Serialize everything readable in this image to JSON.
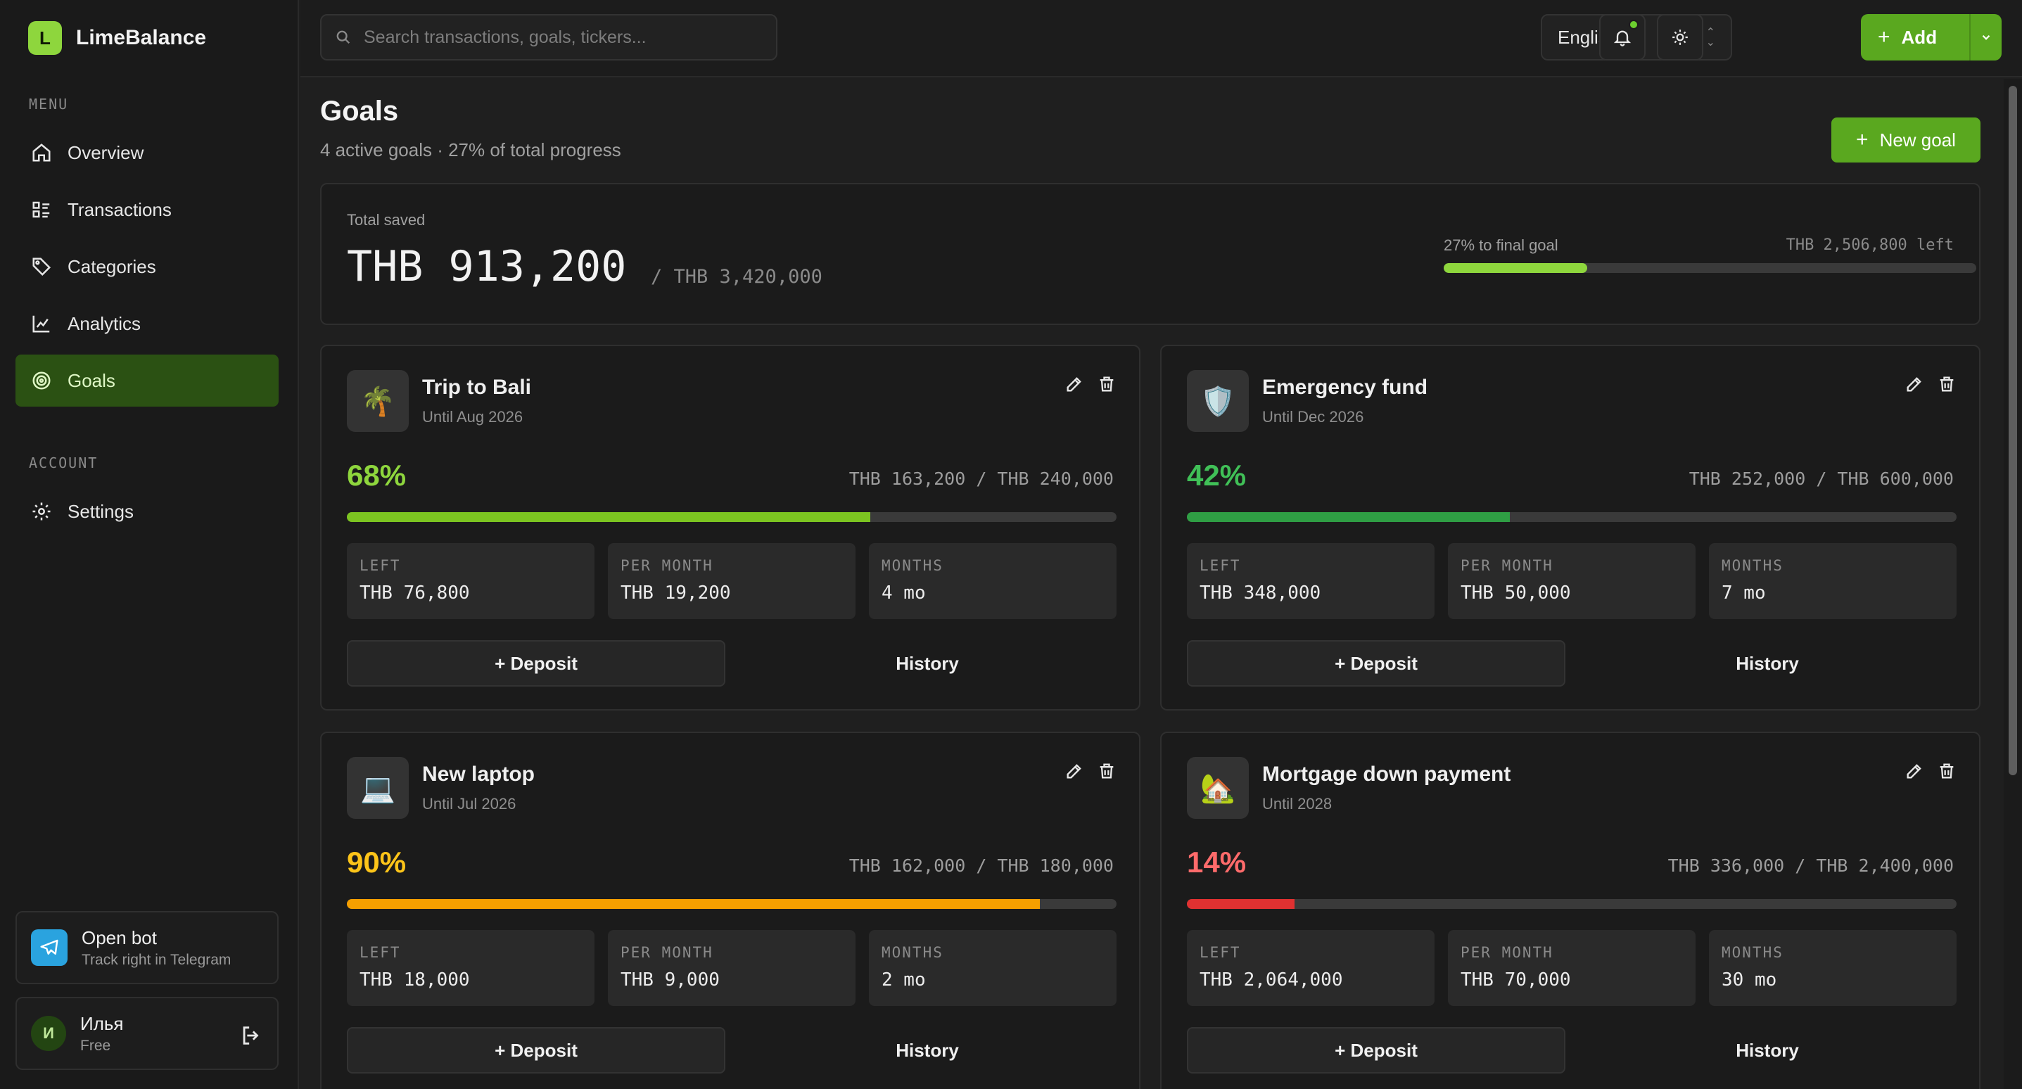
{
  "app": {
    "name": "LimeBalance",
    "logo_letter": "L"
  },
  "sidebar": {
    "menu_label": "MENU",
    "items": [
      {
        "label": "Overview",
        "icon": "home-icon"
      },
      {
        "label": "Transactions",
        "icon": "list-icon"
      },
      {
        "label": "Categories",
        "icon": "tag-icon"
      },
      {
        "label": "Analytics",
        "icon": "chart-icon"
      },
      {
        "label": "Goals",
        "icon": "target-icon",
        "active": true
      }
    ],
    "account_label": "ACCOUNT",
    "account_items": [
      {
        "label": "Settings",
        "icon": "gear-icon"
      }
    ],
    "bot": {
      "title": "Open bot",
      "subtitle": "Track right in Telegram"
    },
    "user": {
      "initial": "И",
      "name": "Илья",
      "plan": "Free"
    }
  },
  "topbar": {
    "search_placeholder": "Search transactions, goals, tickers...",
    "language": "English",
    "add_label": "Add"
  },
  "page": {
    "title": "Goals",
    "subtitle": "4 active goals · 27% of total progress",
    "new_goal_label": "New goal"
  },
  "summary": {
    "label": "Total saved",
    "amount": "THB 913,200",
    "of": "/ THB 3,420,000",
    "progress_text": "27% to final goal",
    "left_text": "THB 2,506,800 left",
    "progress_fraction": 0.27,
    "accent": "#8ed63d"
  },
  "goals": [
    {
      "name": "Trip to Bali",
      "until": "Until Aug 2026",
      "emoji": "🌴",
      "pct": "68%",
      "fraction": 0.68,
      "color": "#7cc421",
      "pct_color": "#8ed63d",
      "amounts": "THB 163,200 / THB 240,000",
      "left": "THB 76,800",
      "per_month": "THB 19,200",
      "months": "4 mo"
    },
    {
      "name": "Emergency fund",
      "until": "Until Dec 2026",
      "emoji": "🛡️",
      "pct": "42%",
      "fraction": 0.42,
      "color": "#2f9e44",
      "pct_color": "#40c057",
      "amounts": "THB 252,000 / THB 600,000",
      "left": "THB 348,000",
      "per_month": "THB 50,000",
      "months": "7 mo"
    },
    {
      "name": "New laptop",
      "until": "Until Jul 2026",
      "emoji": "💻",
      "pct": "90%",
      "fraction": 0.9,
      "color": "#f59f00",
      "pct_color": "#fcc419",
      "amounts": "THB 162,000 / THB 180,000",
      "left": "THB 18,000",
      "per_month": "THB 9,000",
      "months": "2 mo"
    },
    {
      "name": "Mortgage down payment",
      "until": "Until 2028",
      "emoji": "🏡",
      "pct": "14%",
      "fraction": 0.14,
      "color": "#e03131",
      "pct_color": "#ff6b6b",
      "amounts": "THB 336,000 / THB 2,400,000",
      "left": "THB 2,064,000",
      "per_month": "THB 70,000",
      "months": "30 mo"
    }
  ],
  "labels": {
    "left": "LEFT",
    "per_month": "PER MONTH",
    "months": "MONTHS",
    "deposit": "+ Deposit",
    "history": "History"
  }
}
